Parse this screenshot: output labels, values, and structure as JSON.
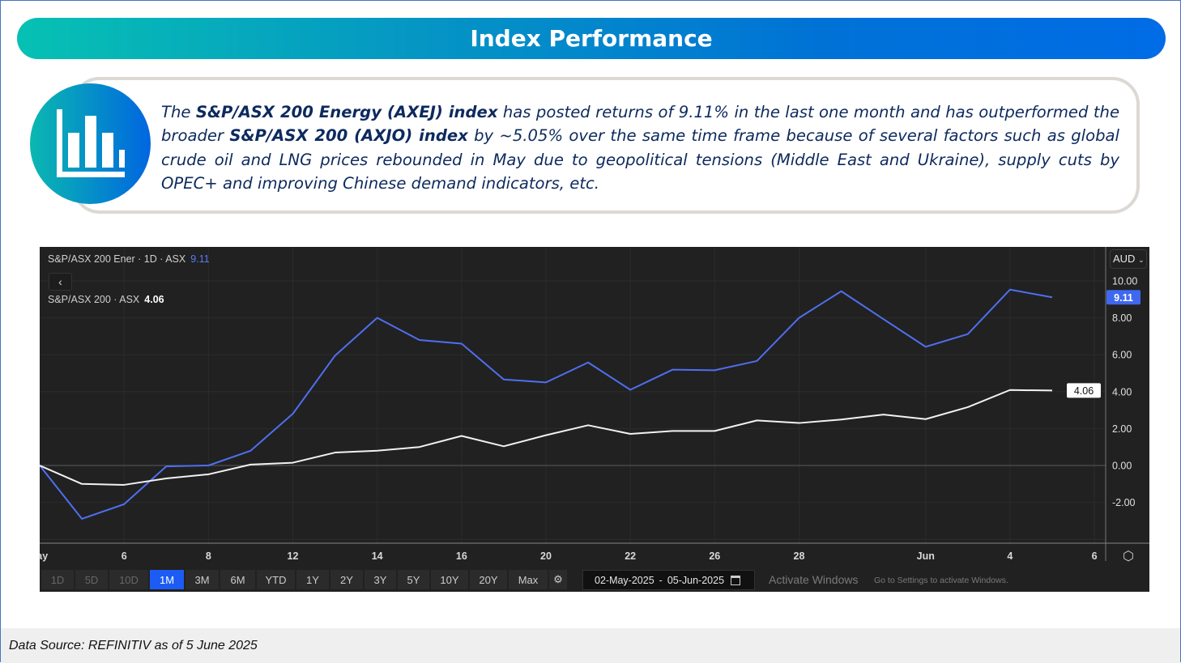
{
  "header": {
    "title": "Index Performance"
  },
  "summary": {
    "icon": "bar-chart-icon",
    "segments": [
      {
        "text": "The ",
        "bold": false
      },
      {
        "text": "S&P/ASX 200 Energy (AXEJ) index",
        "bold": true
      },
      {
        "text": " has posted returns of 9.11% in the last one month and has outperformed the broader ",
        "bold": false
      },
      {
        "text": "S&P/ASX 200 (AXJO) index",
        "bold": true
      },
      {
        "text": " by ~5.05% over the same time frame because of several factors such as global crude oil and LNG prices rebounded in May due to geopolitical tensions (Middle East and Ukraine), supply cuts by OPEC+ and improving Chinese demand indicators, etc.",
        "bold": false
      }
    ]
  },
  "chart_widget": {
    "legend1_label": "S&P/ASX 200 Ener · 1D · ASX",
    "legend1_value": "9.11",
    "legend2_label": "S&P/ASX 200 · ASX",
    "legend2_value": "4.06",
    "back_icon": "chevron-left-icon",
    "currency": "AUD",
    "range_buttons": [
      {
        "label": "1D",
        "state": "disabled"
      },
      {
        "label": "5D",
        "state": "disabled"
      },
      {
        "label": "10D",
        "state": "disabled"
      },
      {
        "label": "1M",
        "state": "active"
      },
      {
        "label": "3M",
        "state": "normal"
      },
      {
        "label": "6M",
        "state": "normal"
      },
      {
        "label": "YTD",
        "state": "normal"
      },
      {
        "label": "1Y",
        "state": "normal"
      },
      {
        "label": "2Y",
        "state": "normal"
      },
      {
        "label": "3Y",
        "state": "normal"
      },
      {
        "label": "5Y",
        "state": "normal"
      },
      {
        "label": "10Y",
        "state": "normal"
      },
      {
        "label": "20Y",
        "state": "normal"
      },
      {
        "label": "Max",
        "state": "normal"
      }
    ],
    "date_from": "02-May-2025",
    "date_sep": "-",
    "date_to": "05-Jun-2025",
    "watermark_line1": "Activate Windows",
    "watermark_line2": "Go to Settings to activate Windows."
  },
  "chart_data": {
    "type": "line",
    "x": [
      "2025-05-02",
      "2025-05-05",
      "2025-05-06",
      "2025-05-07",
      "2025-05-08",
      "2025-05-09",
      "2025-05-12",
      "2025-05-13",
      "2025-05-14",
      "2025-05-15",
      "2025-05-16",
      "2025-05-19",
      "2025-05-20",
      "2025-05-21",
      "2025-05-22",
      "2025-05-23",
      "2025-05-26",
      "2025-05-27",
      "2025-05-28",
      "2025-05-29",
      "2025-05-30",
      "2025-06-02",
      "2025-06-03",
      "2025-06-04",
      "2025-06-05"
    ],
    "series": [
      {
        "name": "S&P/ASX 200 Ener · 1D · ASX",
        "color": "#4f6ff0",
        "values": [
          0,
          -2.89,
          -2.1,
          -0.05,
          0.0,
          0.8,
          2.8,
          5.95,
          8.0,
          6.8,
          6.6,
          4.66,
          4.5,
          5.58,
          4.1,
          5.19,
          5.16,
          5.66,
          8.0,
          9.44,
          7.93,
          6.43,
          7.12,
          9.53,
          9.11
        ]
      },
      {
        "name": "S&P/ASX 200 · ASX",
        "color": "#f2f2f2",
        "values": [
          0,
          -1.0,
          -1.05,
          -0.7,
          -0.48,
          0.05,
          0.15,
          0.7,
          0.8,
          1.0,
          1.6,
          1.04,
          1.64,
          2.18,
          1.71,
          1.87,
          1.87,
          2.44,
          2.3,
          2.49,
          2.76,
          2.51,
          3.16,
          4.09,
          4.06
        ]
      }
    ],
    "x_tick_labels": [
      {
        "label": "May",
        "at": "2025-05-01"
      },
      {
        "label": "6",
        "at": "2025-05-06"
      },
      {
        "label": "8",
        "at": "2025-05-08"
      },
      {
        "label": "12",
        "at": "2025-05-12"
      },
      {
        "label": "14",
        "at": "2025-05-14"
      },
      {
        "label": "16",
        "at": "2025-05-16"
      },
      {
        "label": "20",
        "at": "2025-05-20"
      },
      {
        "label": "22",
        "at": "2025-05-22"
      },
      {
        "label": "26",
        "at": "2025-05-26"
      },
      {
        "label": "28",
        "at": "2025-05-28"
      },
      {
        "label": "Jun",
        "at": "2025-06-02"
      },
      {
        "label": "4",
        "at": "2025-06-04"
      },
      {
        "label": "6",
        "at": "2025-06-06"
      }
    ],
    "y_tick_labels": [
      "10.00",
      "8.00",
      "6.00",
      "4.00",
      "2.00",
      "0.00",
      "-2.00"
    ],
    "y_ticks": [
      10,
      8,
      6,
      4,
      2,
      0,
      -2
    ],
    "ylim": [
      -4.2,
      11.8
    ],
    "last_value_labels": [
      "9.11",
      "4.06"
    ],
    "grid": true,
    "background": "#212121"
  },
  "footer": {
    "source": "Data Source: REFINITIV as of 5 June 2025"
  }
}
